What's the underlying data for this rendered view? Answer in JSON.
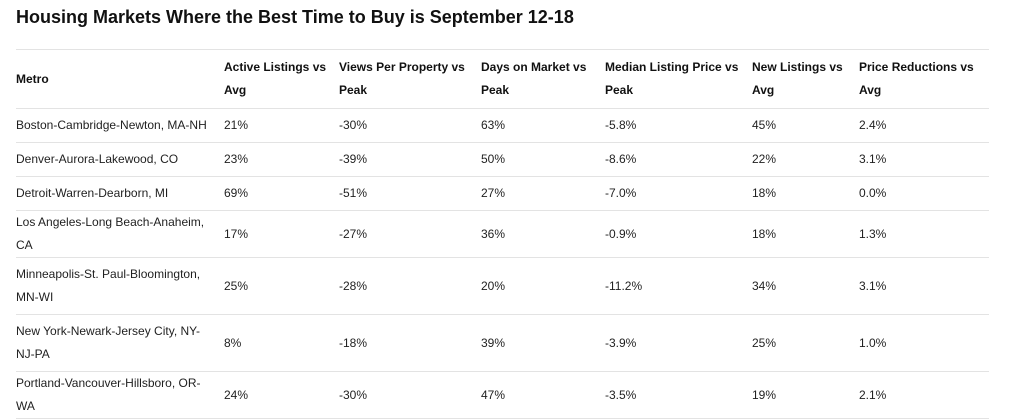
{
  "title": "Housing Markets Where the Best Time to Buy is September 12-18",
  "table": {
    "headers": [
      "Metro",
      "Active Listings vs Avg",
      "Views Per Property vs Peak",
      "Days on Market vs Peak",
      "Median Listing Price vs Peak",
      "New Listings vs Avg",
      "Price Reductions vs Avg"
    ],
    "rows": [
      [
        "Boston-Cambridge-Newton, MA-NH",
        "21%",
        "-30%",
        "63%",
        "-5.8%",
        "45%",
        "2.4%"
      ],
      [
        "Denver-Aurora-Lakewood, CO",
        "23%",
        "-39%",
        "50%",
        "-8.6%",
        "22%",
        "3.1%"
      ],
      [
        "Detroit-Warren-Dearborn, MI",
        "69%",
        "-51%",
        "27%",
        "-7.0%",
        "18%",
        "0.0%"
      ],
      [
        "Los Angeles-Long Beach-Anaheim, CA",
        "17%",
        "-27%",
        "36%",
        "-0.9%",
        "18%",
        "1.3%"
      ],
      [
        "Minneapolis-St. Paul-Bloomington, MN-WI",
        "25%",
        "-28%",
        "20%",
        "-11.2%",
        "34%",
        "3.1%"
      ],
      [
        "New York-Newark-Jersey City, NY-NJ-PA",
        "8%",
        "-18%",
        "39%",
        "-3.9%",
        "25%",
        "1.0%"
      ],
      [
        "Portland-Vancouver-Hillsboro, OR-WA",
        "24%",
        "-30%",
        "47%",
        "-3.5%",
        "19%",
        "2.1%"
      ]
    ]
  }
}
